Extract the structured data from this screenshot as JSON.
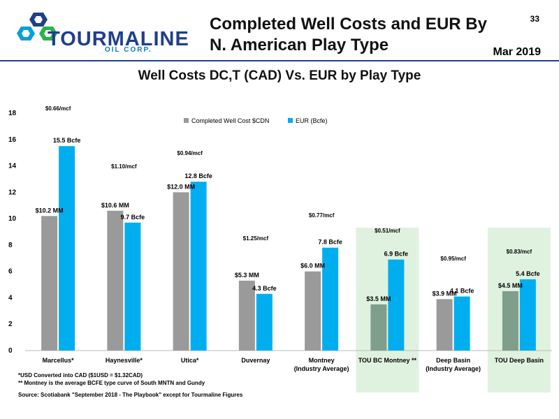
{
  "header": {
    "logo_name": "TOURMALINE",
    "logo_sub": "OIL CORP.",
    "title_line1": "Completed Well Costs and EUR By",
    "title_line2": "N. American Play Type",
    "page_number": "33",
    "date": "Mar 2019"
  },
  "chart_data": {
    "type": "bar",
    "title": "Well Costs DC,T (CAD) Vs. EUR by Play Type",
    "categories": [
      "Marcellus*",
      "Haynesville*",
      "Utica*",
      "Duvernay",
      "Montney\n(Industry Average)",
      "TOU BC Montney **",
      "Deep Basin\n(Industry Average)",
      "TOU Deep Basin"
    ],
    "series": [
      {
        "name": "Completed Well Cost $CDN",
        "values": [
          10.2,
          10.6,
          12.0,
          5.3,
          6.0,
          3.5,
          3.9,
          4.5
        ],
        "labels": [
          "$10.2 MM",
          "$10.6 MM",
          "$12.0 MM",
          "$5.3 MM",
          "$6.0 MM",
          "$3.5 MM",
          "$3.9 MM",
          "$4.5 MM"
        ],
        "color": "#9a9a9a",
        "highlight_color": "#7f9e8c"
      },
      {
        "name": "EUR (Bcfe)",
        "values": [
          15.5,
          9.7,
          12.8,
          4.3,
          7.8,
          6.9,
          4.1,
          5.4
        ],
        "labels": [
          "15.5 Bcfe",
          "9.7 Bcfe",
          "12.8 Bcfe",
          "4.3 Bcfe",
          "7.8 Bcfe",
          "6.9 Bcfe",
          "4.1 Bcfe",
          "5.4 Bcfe"
        ],
        "color": "#00aeef"
      }
    ],
    "cost_per_mcf": [
      "$0.66/mcf",
      "$1.10/mcf",
      "$0.94/mcf",
      "$1.25/mcf",
      "$0.77/mcf",
      "$0.51/mcf",
      "$0.95/mcf",
      "$0.83/mcf"
    ],
    "highlighted_categories": [
      "TOU BC Montney **",
      "TOU Deep Basin"
    ],
    "highlight_color": "#dff2df",
    "ylim": [
      0,
      18
    ],
    "yticks": [
      0,
      2,
      4,
      6,
      8,
      10,
      12,
      14,
      16,
      18
    ],
    "xlabel": "",
    "ylabel": "",
    "legend_position": "top-center",
    "grid": false
  },
  "footnotes": {
    "line1": "*USD Converted into CAD ($1USD = $1.32CAD)",
    "line2": "** Montney is the average BCFE type curve of South MNTN and Gundy",
    "source": "Source:  Scotiabank \"September 2018 - The Playbook\" except for Tourmaline Figures"
  }
}
